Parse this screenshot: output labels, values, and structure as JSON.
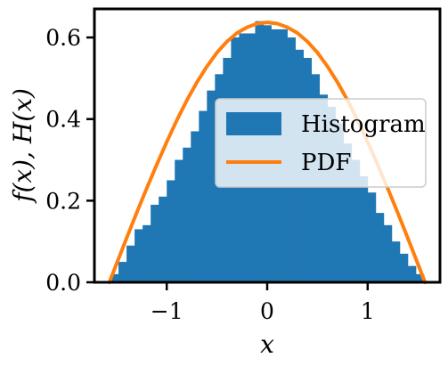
{
  "chart_data": {
    "type": "bar",
    "title": "",
    "xlabel": "x",
    "ylabel": "f(x), H(x)",
    "xlim": [
      -1.72,
      1.72
    ],
    "ylim": [
      0.0,
      0.67
    ],
    "x_ticks": [
      -1,
      0,
      1
    ],
    "x_tick_labels": [
      "−1",
      "0",
      "1"
    ],
    "y_ticks": [
      0.0,
      0.2,
      0.4,
      0.6
    ],
    "y_tick_labels": [
      "0.0",
      "0.2",
      "0.4",
      "0.6"
    ],
    "grid": false,
    "legend": {
      "position": "center-right",
      "entries": [
        "Histogram",
        "PDF"
      ]
    },
    "colors": {
      "histogram": "#1f77b4",
      "pdf": "#ff7f0e",
      "axes": "#000000"
    },
    "histogram": {
      "name": "Histogram",
      "bin_edges": [
        -1.56,
        -1.48,
        -1.4,
        -1.32,
        -1.24,
        -1.16,
        -1.08,
        -1.0,
        -0.92,
        -0.84,
        -0.76,
        -0.68,
        -0.6,
        -0.52,
        -0.44,
        -0.36,
        -0.28,
        -0.2,
        -0.12,
        -0.04,
        0.04,
        0.12,
        0.2,
        0.28,
        0.36,
        0.44,
        0.52,
        0.6,
        0.68,
        0.76,
        0.84,
        0.92,
        1.0,
        1.08,
        1.16,
        1.24,
        1.32,
        1.4,
        1.48,
        1.56
      ],
      "heights": [
        0.02,
        0.05,
        0.09,
        0.13,
        0.14,
        0.19,
        0.21,
        0.25,
        0.3,
        0.33,
        0.37,
        0.42,
        0.47,
        0.51,
        0.55,
        0.6,
        0.61,
        0.61,
        0.64,
        0.63,
        0.62,
        0.62,
        0.6,
        0.57,
        0.55,
        0.51,
        0.46,
        0.43,
        0.39,
        0.34,
        0.3,
        0.26,
        0.22,
        0.17,
        0.14,
        0.1,
        0.07,
        0.04,
        0.02
      ]
    },
    "pdf": {
      "name": "PDF",
      "x": [
        -1.571,
        -1.5,
        -1.4,
        -1.3,
        -1.2,
        -1.1,
        -1.0,
        -0.9,
        -0.8,
        -0.7,
        -0.6,
        -0.5,
        -0.4,
        -0.3,
        -0.2,
        -0.1,
        0.0,
        0.1,
        0.2,
        0.3,
        0.4,
        0.5,
        0.6,
        0.7,
        0.8,
        0.9,
        1.0,
        1.1,
        1.2,
        1.3,
        1.4,
        1.5,
        1.571
      ],
      "y": [
        0.0,
        0.045,
        0.108,
        0.17,
        0.23,
        0.288,
        0.344,
        0.397,
        0.446,
        0.49,
        0.529,
        0.563,
        0.59,
        0.611,
        0.625,
        0.634,
        0.637,
        0.634,
        0.625,
        0.611,
        0.59,
        0.563,
        0.529,
        0.49,
        0.446,
        0.397,
        0.344,
        0.288,
        0.23,
        0.17,
        0.108,
        0.045,
        0.0
      ]
    }
  }
}
